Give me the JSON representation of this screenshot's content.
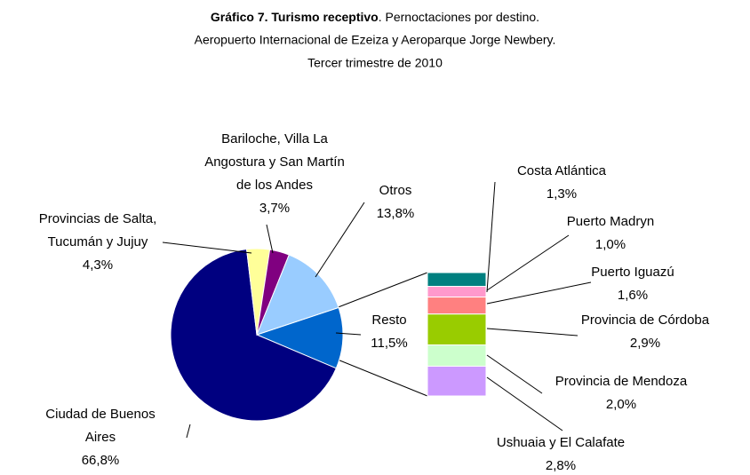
{
  "chart_data": {
    "type": "pie-of-bar",
    "title": "Gráfico 7. Turismo receptivo",
    "subtitle": [
      ". Pernoctaciones por destino.",
      "Aeropuerto Internacional de Ezeiza y Aeroparque Jorge Newbery.",
      "Tercer trimestre de 2010"
    ],
    "pie": {
      "categories": [
        "Resto",
        "Ciudad de Buenos Aires",
        "Provincias de Salta, Tucumán y Jujuy",
        "Bariloche, Villa La Angostura y San Martín de los Andes",
        "Otros"
      ],
      "values": [
        11.5,
        66.8,
        4.3,
        3.7,
        13.8
      ],
      "value_labels": [
        "11,5%",
        "66,8%",
        "4,3%",
        "3,7%",
        "13,8%"
      ],
      "colors": [
        "#0066cc",
        "#000080",
        "#ffff99",
        "#800080",
        "#99ccff"
      ]
    },
    "bar": {
      "categories": [
        "Costa Atlántica",
        "Puerto Madryn",
        "Puerto Iguazú",
        "Provincia de Córdoba",
        "Provincia de Mendoza",
        "Ushuaia y El Calafate"
      ],
      "values": [
        1.3,
        1.0,
        1.6,
        2.9,
        2.0,
        2.8
      ],
      "value_labels": [
        "1,3%",
        "1,0%",
        "1,6%",
        "2,9%",
        "2,0%",
        "2,8%"
      ],
      "colors": [
        "#008080",
        "#ff99cc",
        "#ff8080",
        "#99cc00",
        "#ccffcc",
        "#cc99ff"
      ]
    }
  }
}
